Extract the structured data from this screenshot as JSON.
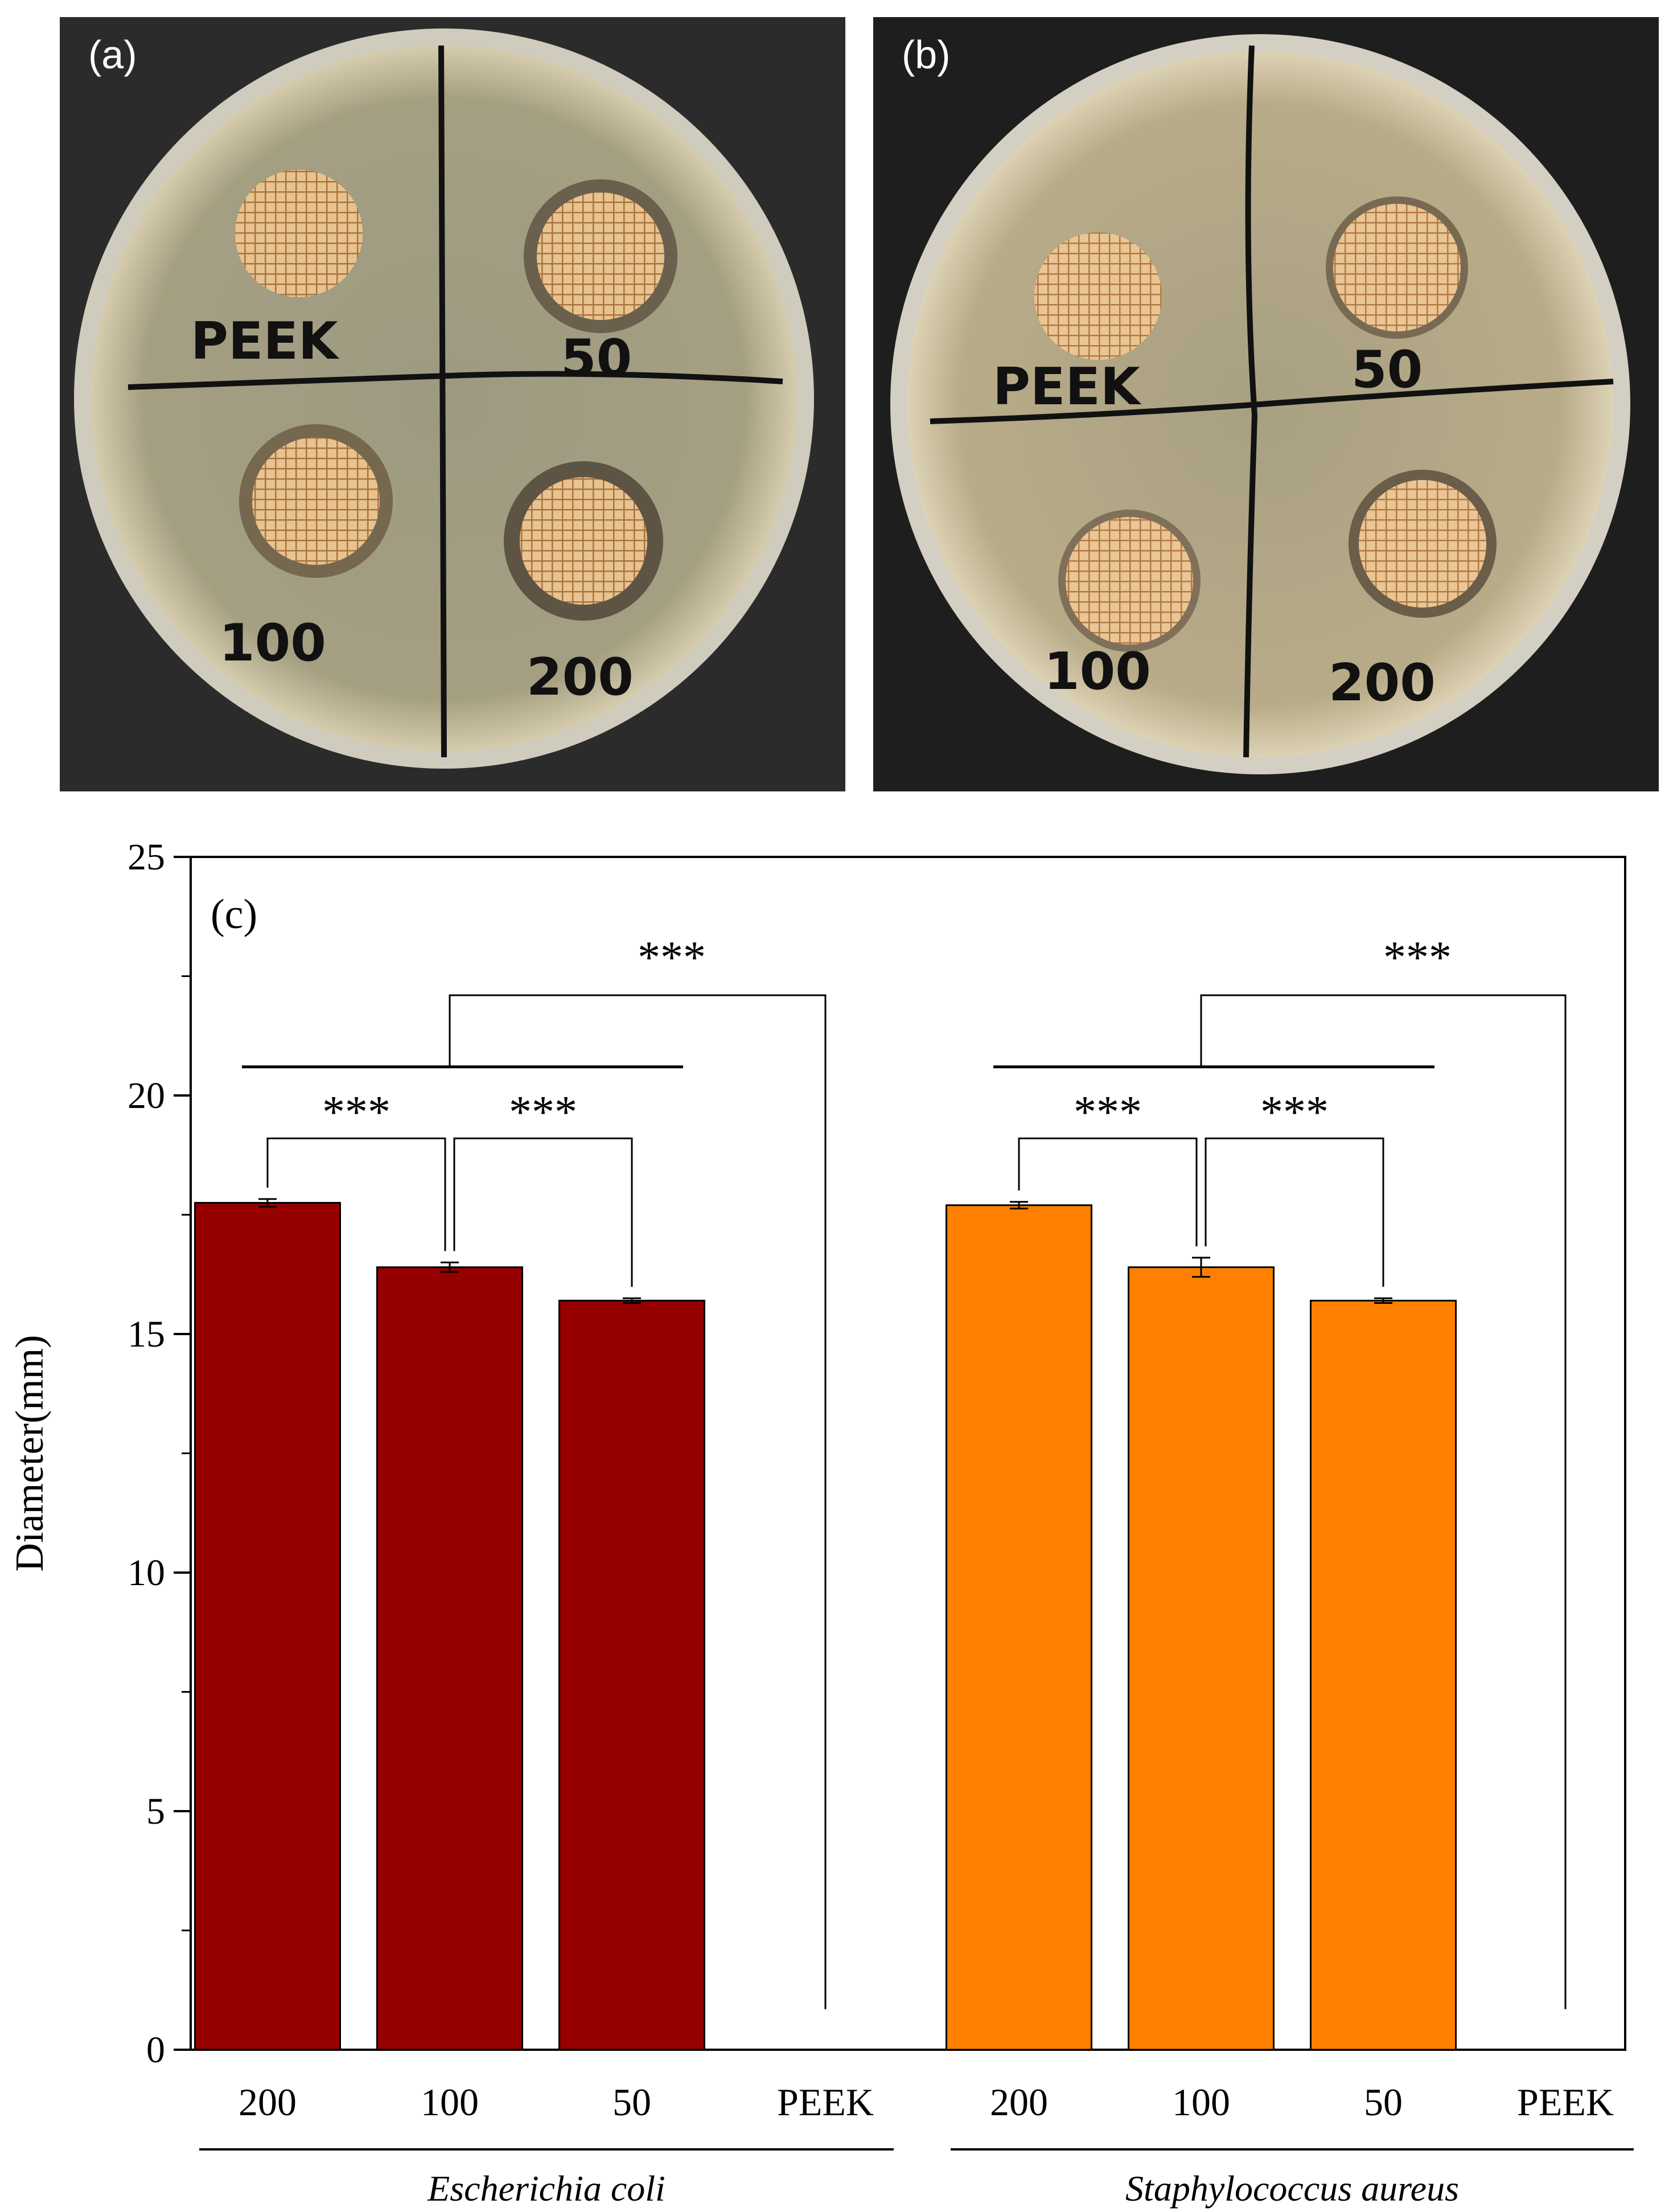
{
  "panels": [
    {
      "id": "a",
      "label": "(a)",
      "disk_labels": [
        "PEEK",
        "50",
        "100",
        "200"
      ],
      "colors": {
        "background": "#2b2b2b",
        "agar": "#b5aa86",
        "disk": "#d7a86d",
        "marker": "#111111"
      }
    },
    {
      "id": "b",
      "label": "(b)",
      "disk_labels": [
        "PEEK",
        "50",
        "100",
        "200"
      ],
      "colors": {
        "background": "#1e1e1e",
        "agar": "#c2b48e",
        "disk": "#d9a36a",
        "marker": "#111111"
      }
    }
  ],
  "chart_data": {
    "type": "bar",
    "panel_label": "(c)",
    "ylabel": "Diameter(mm)",
    "ylim": [
      0,
      25
    ],
    "yticks": [
      0,
      5,
      10,
      15,
      20,
      25
    ],
    "groups": [
      {
        "name": "Escherichia coli",
        "color": "#960000",
        "categories": [
          "200",
          "100",
          "50",
          "PEEK"
        ],
        "values": [
          17.75,
          16.4,
          15.7,
          0
        ],
        "errors": [
          0.08,
          0.1,
          0.05,
          0
        ]
      },
      {
        "name": "Staphylococcus aureus",
        "color": "#ff8000",
        "categories": [
          "200",
          "100",
          "50",
          "PEEK"
        ],
        "values": [
          17.7,
          16.4,
          15.7,
          0
        ],
        "errors": [
          0.07,
          0.2,
          0.05,
          0
        ]
      }
    ],
    "significance": "***"
  }
}
